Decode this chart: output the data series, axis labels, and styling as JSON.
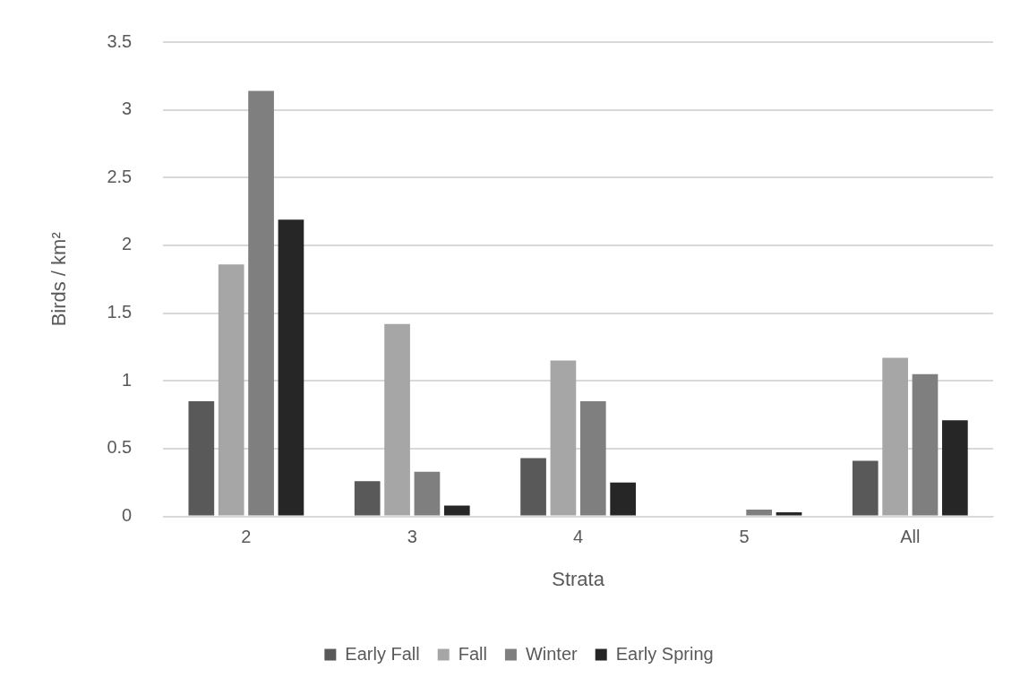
{
  "chart_data": {
    "type": "bar",
    "xlabel": "Strata",
    "ylabel": "Birds / km²",
    "categories": [
      "2",
      "3",
      "4",
      "5",
      "All"
    ],
    "series": [
      {
        "name": "Early Fall",
        "color": "#595959",
        "values": [
          0.85,
          0.26,
          0.43,
          0,
          0.41
        ]
      },
      {
        "name": "Fall",
        "color": "#a6a6a6",
        "values": [
          1.86,
          1.42,
          1.15,
          0,
          1.17
        ]
      },
      {
        "name": "Winter",
        "color": "#7f7f7f",
        "values": [
          3.14,
          0.33,
          0.85,
          0.05,
          1.05
        ]
      },
      {
        "name": "Early Spring",
        "color": "#262626",
        "values": [
          2.19,
          0.08,
          0.25,
          0.03,
          0.71
        ]
      }
    ],
    "ylim": [
      0,
      3.5
    ],
    "yticks": [
      0,
      0.5,
      1,
      1.5,
      2,
      2.5,
      3,
      3.5
    ],
    "grid": "y",
    "legend": "bottom"
  }
}
